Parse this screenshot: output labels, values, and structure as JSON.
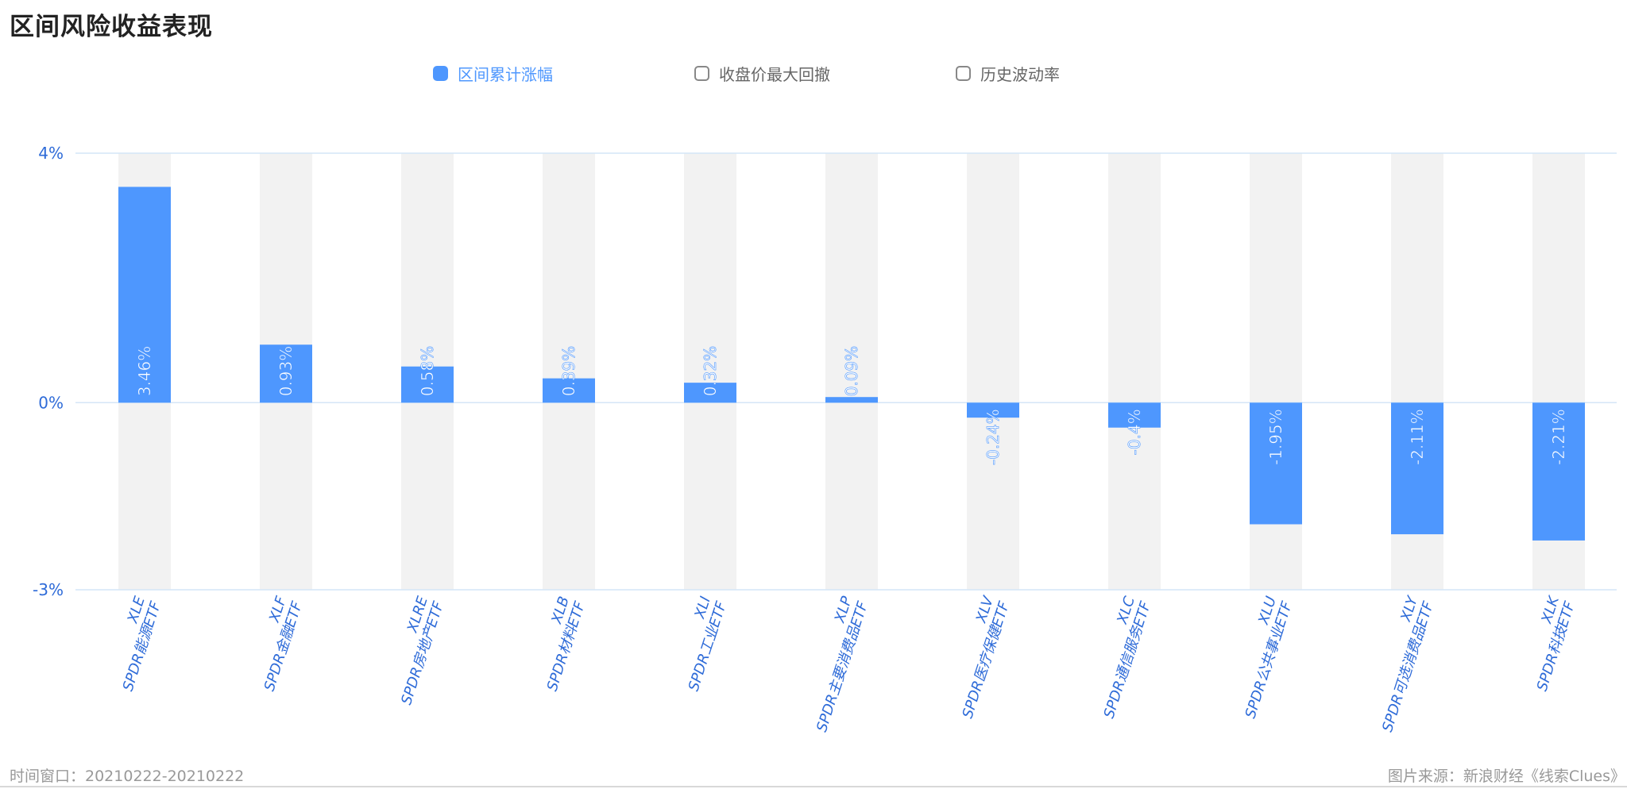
{
  "page": {
    "title": "区间风险收益表现",
    "footer_left": "时间窗口：20210222-20210222",
    "footer_right": "图片来源：新浪财经《线索Clues》"
  },
  "legend": [
    {
      "label": "区间累计涨幅",
      "active": true
    },
    {
      "label": "收盘价最大回撤",
      "active": false
    },
    {
      "label": "历史波动率",
      "active": false
    }
  ],
  "colors": {
    "bar": "#4e97fe",
    "band": "#f2f2f2",
    "axis_text": "#2e6bd8",
    "grid": "#d4e6f7"
  },
  "chart_data": {
    "type": "bar",
    "categories": [
      {
        "code": "XLE",
        "name": "SPDR能源ETF"
      },
      {
        "code": "XLF",
        "name": "SPDR金融ETF"
      },
      {
        "code": "XLRE",
        "name": "SPDR房地产ETF"
      },
      {
        "code": "XLB",
        "name": "SPDR材料ETF"
      },
      {
        "code": "XLI",
        "name": "SPDR工业ETF"
      },
      {
        "code": "XLP",
        "name": "SPDR主要消费品ETF"
      },
      {
        "code": "XLV",
        "name": "SPDR医疗保健ETF"
      },
      {
        "code": "XLC",
        "name": "SPDR通信服务ETF"
      },
      {
        "code": "XLU",
        "name": "SPDR公共事业ETF"
      },
      {
        "code": "XLY",
        "name": "SPDR可选消费品ETF"
      },
      {
        "code": "XLK",
        "name": "SPDR科技ETF"
      }
    ],
    "series": [
      {
        "name": "区间累计涨幅",
        "values": [
          3.46,
          0.93,
          0.58,
          0.39,
          0.32,
          0.09,
          -0.24,
          -0.4,
          -1.95,
          -2.11,
          -2.21
        ],
        "labels": [
          "3.46%",
          "0.93%",
          "0.58%",
          "0.39%",
          "0.32%",
          "0.09%",
          "-0.24%",
          "-0.4%",
          "-1.95%",
          "-2.11%",
          "-2.21%"
        ]
      }
    ],
    "ylim": [
      -3,
      4
    ],
    "yticks": [
      {
        "value": 4,
        "label": "4%"
      },
      {
        "value": 0,
        "label": "0%"
      },
      {
        "value": -3,
        "label": "-3%"
      }
    ],
    "grid": true
  }
}
